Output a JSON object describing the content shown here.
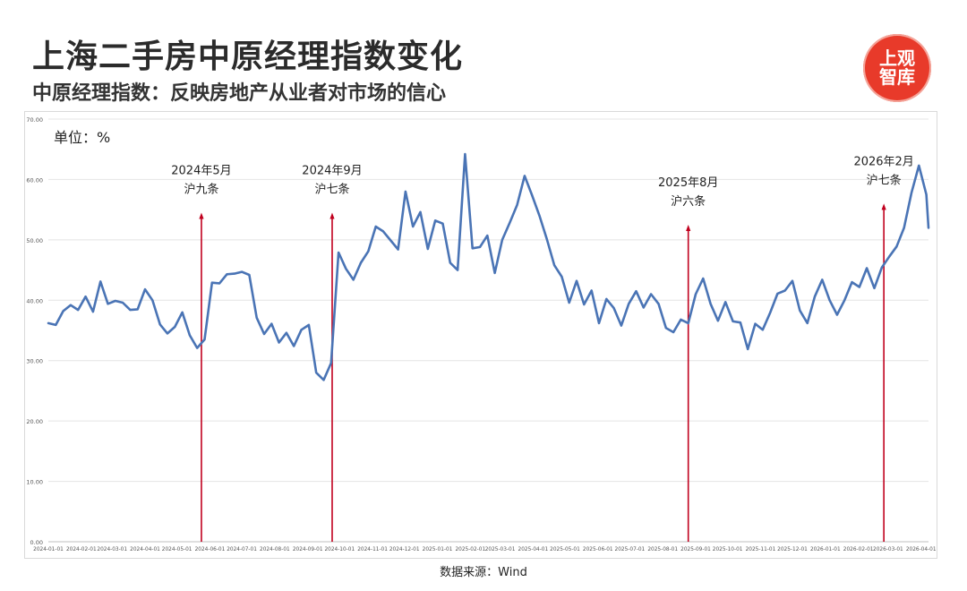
{
  "header": {
    "title": "上海二手房中原经理指数变化",
    "subtitle": "中原经理指数：反映房地产从业者对市场的信心",
    "logo_line1": "上观",
    "logo_line2": "智库"
  },
  "unit_label": "单位：%",
  "source": "数据来源：Wind",
  "colors": {
    "line": "#4a74b5",
    "marker": "#c0001e",
    "logo": "#e83a2a"
  },
  "chart_data": {
    "type": "line",
    "ylim": [
      0,
      70
    ],
    "y_ticks": [
      "0.00",
      "10.00",
      "20.00",
      "30.00",
      "40.00",
      "50.00",
      "60.00",
      "70.00"
    ],
    "x_ticks": [
      "2024-01-01",
      "2024-02-01",
      "2024-03-01",
      "2024-04-01",
      "2024-05-01",
      "2024-06-01",
      "2024-07-01",
      "2024-08-01",
      "2024-09-01",
      "2024-10-01",
      "2024-11-01",
      "2024-12-01",
      "2025-01-01",
      "2025-02-01",
      "2025-03-01",
      "2025-04-01",
      "2025-05-01",
      "2025-06-01",
      "2025-07-01",
      "2025-08-01",
      "2025-09-01",
      "2025-10-01",
      "2025-11-01",
      "2025-12-01",
      "2026-01-01",
      "2026-02-01",
      "2026-03-01",
      "2026-04-01"
    ],
    "x_start": "2024-01-01",
    "x_end": "2026-04-08",
    "grid": "horizontal",
    "series": [
      {
        "points": [
          [
            "2024-01-01",
            36.2
          ],
          [
            "2024-01-08",
            35.9
          ],
          [
            "2024-01-15",
            38.2
          ],
          [
            "2024-01-22",
            39.2
          ],
          [
            "2024-01-29",
            38.4
          ],
          [
            "2024-02-05",
            40.6
          ],
          [
            "2024-02-12",
            38.1
          ],
          [
            "2024-02-19",
            43.1
          ],
          [
            "2024-02-26",
            39.4
          ],
          [
            "2024-03-04",
            39.9
          ],
          [
            "2024-03-11",
            39.6
          ],
          [
            "2024-03-18",
            38.4
          ],
          [
            "2024-03-25",
            38.5
          ],
          [
            "2024-04-01",
            41.8
          ],
          [
            "2024-04-08",
            40.0
          ],
          [
            "2024-04-15",
            36.0
          ],
          [
            "2024-04-22",
            34.5
          ],
          [
            "2024-04-29",
            35.6
          ],
          [
            "2024-05-06",
            38.0
          ],
          [
            "2024-05-13",
            34.2
          ],
          [
            "2024-05-20",
            32.1
          ],
          [
            "2024-05-27",
            33.5
          ],
          [
            "2024-06-03",
            42.9
          ],
          [
            "2024-06-10",
            42.8
          ],
          [
            "2024-06-17",
            44.3
          ],
          [
            "2024-06-24",
            44.4
          ],
          [
            "2024-07-01",
            44.7
          ],
          [
            "2024-07-08",
            44.2
          ],
          [
            "2024-07-15",
            37.1
          ],
          [
            "2024-07-22",
            34.4
          ],
          [
            "2024-07-29",
            36.1
          ],
          [
            "2024-08-05",
            33.0
          ],
          [
            "2024-08-12",
            34.6
          ],
          [
            "2024-08-19",
            32.4
          ],
          [
            "2024-08-26",
            35.1
          ],
          [
            "2024-09-02",
            35.9
          ],
          [
            "2024-09-09",
            28.0
          ],
          [
            "2024-09-16",
            26.8
          ],
          [
            "2024-09-23",
            29.6
          ],
          [
            "2024-09-30",
            47.9
          ],
          [
            "2024-10-07",
            45.2
          ],
          [
            "2024-10-14",
            43.4
          ],
          [
            "2024-10-21",
            46.2
          ],
          [
            "2024-10-28",
            48.1
          ],
          [
            "2024-11-04",
            52.2
          ],
          [
            "2024-11-11",
            51.4
          ],
          [
            "2024-11-18",
            49.9
          ],
          [
            "2024-11-25",
            48.4
          ],
          [
            "2024-12-02",
            58.0
          ],
          [
            "2024-12-09",
            52.2
          ],
          [
            "2024-12-16",
            54.6
          ],
          [
            "2024-12-23",
            48.5
          ],
          [
            "2024-12-30",
            53.2
          ],
          [
            "2025-01-06",
            52.7
          ],
          [
            "2025-01-13",
            46.2
          ],
          [
            "2025-01-20",
            45.0
          ],
          [
            "2025-01-27",
            64.2
          ],
          [
            "2025-02-03",
            48.6
          ],
          [
            "2025-02-10",
            48.8
          ],
          [
            "2025-02-17",
            50.7
          ],
          [
            "2025-02-24",
            44.5
          ],
          [
            "2025-03-03",
            50.0
          ],
          [
            "2025-03-10",
            52.8
          ],
          [
            "2025-03-17",
            55.8
          ],
          [
            "2025-03-24",
            60.6
          ],
          [
            "2025-03-31",
            57.4
          ],
          [
            "2025-04-07",
            54.0
          ],
          [
            "2025-04-14",
            50.1
          ],
          [
            "2025-04-21",
            45.8
          ],
          [
            "2025-04-28",
            43.9
          ],
          [
            "2025-05-05",
            39.6
          ],
          [
            "2025-05-12",
            43.2
          ],
          [
            "2025-05-19",
            39.3
          ],
          [
            "2025-05-26",
            41.6
          ],
          [
            "2025-06-02",
            36.2
          ],
          [
            "2025-06-09",
            40.2
          ],
          [
            "2025-06-16",
            38.7
          ],
          [
            "2025-06-23",
            35.8
          ],
          [
            "2025-06-30",
            39.4
          ],
          [
            "2025-07-07",
            41.5
          ],
          [
            "2025-07-14",
            38.8
          ],
          [
            "2025-07-21",
            41.0
          ],
          [
            "2025-07-28",
            39.4
          ],
          [
            "2025-08-04",
            35.4
          ],
          [
            "2025-08-11",
            34.7
          ],
          [
            "2025-08-18",
            36.8
          ],
          [
            "2025-08-25",
            36.2
          ],
          [
            "2025-09-01",
            41.0
          ],
          [
            "2025-09-08",
            43.6
          ],
          [
            "2025-09-15",
            39.4
          ],
          [
            "2025-09-22",
            36.6
          ],
          [
            "2025-09-29",
            39.7
          ],
          [
            "2025-10-06",
            36.5
          ],
          [
            "2025-10-13",
            36.3
          ],
          [
            "2025-10-20",
            31.9
          ],
          [
            "2025-10-27",
            36.1
          ],
          [
            "2025-11-03",
            35.1
          ],
          [
            "2025-11-10",
            37.9
          ],
          [
            "2025-11-17",
            41.1
          ],
          [
            "2025-11-24",
            41.6
          ],
          [
            "2025-12-01",
            43.2
          ],
          [
            "2025-12-08",
            38.3
          ],
          [
            "2025-12-15",
            36.2
          ],
          [
            "2025-12-22",
            40.6
          ],
          [
            "2025-12-29",
            43.4
          ],
          [
            "2026-01-05",
            40.0
          ],
          [
            "2026-01-12",
            37.6
          ],
          [
            "2026-01-19",
            40.0
          ],
          [
            "2026-01-26",
            43.0
          ],
          [
            "2026-02-02",
            42.2
          ],
          [
            "2026-02-09",
            45.3
          ],
          [
            "2026-02-16",
            42.0
          ],
          [
            "2026-02-23",
            45.4
          ],
          [
            "2026-03-02",
            47.2
          ],
          [
            "2026-03-09",
            48.9
          ],
          [
            "2026-03-16",
            52.0
          ],
          [
            "2026-03-23",
            57.8
          ],
          [
            "2026-03-30",
            62.3
          ],
          [
            "2026-04-06",
            57.5
          ],
          [
            "2026-04-08",
            52.0
          ]
        ]
      }
    ],
    "annotations": [
      {
        "date": "2024-05-24",
        "y_top": 54.5,
        "line1": "2024年5月",
        "line2": "沪九条"
      },
      {
        "date": "2024-09-24",
        "y_top": 54.5,
        "line1": "2024年9月",
        "line2": "沪七条"
      },
      {
        "date": "2025-08-25",
        "y_top": 52.5,
        "line1": "2025年8月",
        "line2": "沪六条"
      },
      {
        "date": "2026-02-25",
        "y_top": 56.0,
        "line1": "2026年2月",
        "line2": "沪七条"
      }
    ]
  }
}
